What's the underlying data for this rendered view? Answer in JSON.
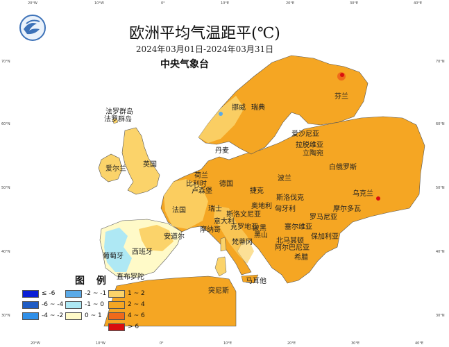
{
  "title": "欧洲平均气温距平(℃)",
  "date_range": "2024年03月01日-2024年03月31日",
  "agency": "中央气象台",
  "ticks": {
    "top": [
      "20°W",
      "10°W",
      "0°",
      "10°E",
      "20°E",
      "30°E",
      "40°E"
    ],
    "bottom": [
      "20°W",
      "10°W",
      "0°",
      "10°E",
      "20°E",
      "30°E",
      "40°E"
    ],
    "left": [
      "70°N",
      "60°N",
      "50°N",
      "40°N",
      "30°N"
    ],
    "right": [
      "70°N",
      "60°N",
      "50°N",
      "40°N",
      "30°N"
    ]
  },
  "places": [
    {
      "name": "法罗群岛"
    },
    {
      "name": "挪威"
    },
    {
      "name": "瑞典"
    },
    {
      "name": "芬兰"
    },
    {
      "name": "爱沙尼亚"
    },
    {
      "name": "拉脱维亚"
    },
    {
      "name": "立陶宛"
    },
    {
      "name": "丹麦"
    },
    {
      "name": "英国"
    },
    {
      "name": "爱尔兰"
    },
    {
      "name": "荷兰"
    },
    {
      "name": "比利时"
    },
    {
      "name": "卢森堡"
    },
    {
      "name": "德国"
    },
    {
      "name": "波兰"
    },
    {
      "name": "白俄罗斯"
    },
    {
      "name": "捷克"
    },
    {
      "name": "斯洛伐克"
    },
    {
      "name": "乌克兰"
    },
    {
      "name": "法国"
    },
    {
      "name": "瑞士"
    },
    {
      "name": "奥地利"
    },
    {
      "name": "匈牙利"
    },
    {
      "name": "摩尔多瓦"
    },
    {
      "name": "斯洛文尼亚"
    },
    {
      "name": "克罗地亚"
    },
    {
      "name": "罗马尼亚"
    },
    {
      "name": "意大利"
    },
    {
      "name": "摩纳哥"
    },
    {
      "name": "塞尔维亚"
    },
    {
      "name": "波黑"
    },
    {
      "name": "黑山"
    },
    {
      "name": "保加利亚"
    },
    {
      "name": "北马其顿"
    },
    {
      "name": "阿尔巴尼亚"
    },
    {
      "name": "希腊"
    },
    {
      "name": "安道尔"
    },
    {
      "name": "西班牙"
    },
    {
      "name": "葡萄牙"
    },
    {
      "name": "梵蒂冈"
    },
    {
      "name": "马耳他"
    },
    {
      "name": "直布罗陀"
    },
    {
      "name": "突尼斯"
    }
  ],
  "legend": {
    "title": "图 例",
    "items": [
      {
        "label": "≤ -6",
        "color": "#0a1fd6"
      },
      {
        "label": "-6 ~ -4",
        "color": "#1f5cc4"
      },
      {
        "label": "-4 ~ -2",
        "color": "#2f8fe8"
      },
      {
        "label": "-2 ~ -1",
        "color": "#5aaae8"
      },
      {
        "label": "-1 ~ 0",
        "color": "#aee8f4"
      },
      {
        "label": "0 ~ 1",
        "color": "#fffac8"
      },
      {
        "label": "1 ~ 2",
        "color": "#fbd36a"
      },
      {
        "label": "2 ~ 4",
        "color": "#f5a623"
      },
      {
        "label": "4 ~ 6",
        "color": "#f06a1a"
      },
      {
        "label": "> 6",
        "color": "#d90e0e"
      }
    ]
  },
  "colors": {
    "sea": "#ffffff",
    "land_dominant": "#f5a623",
    "land_light": "#fbd36a",
    "border": "#555555"
  }
}
